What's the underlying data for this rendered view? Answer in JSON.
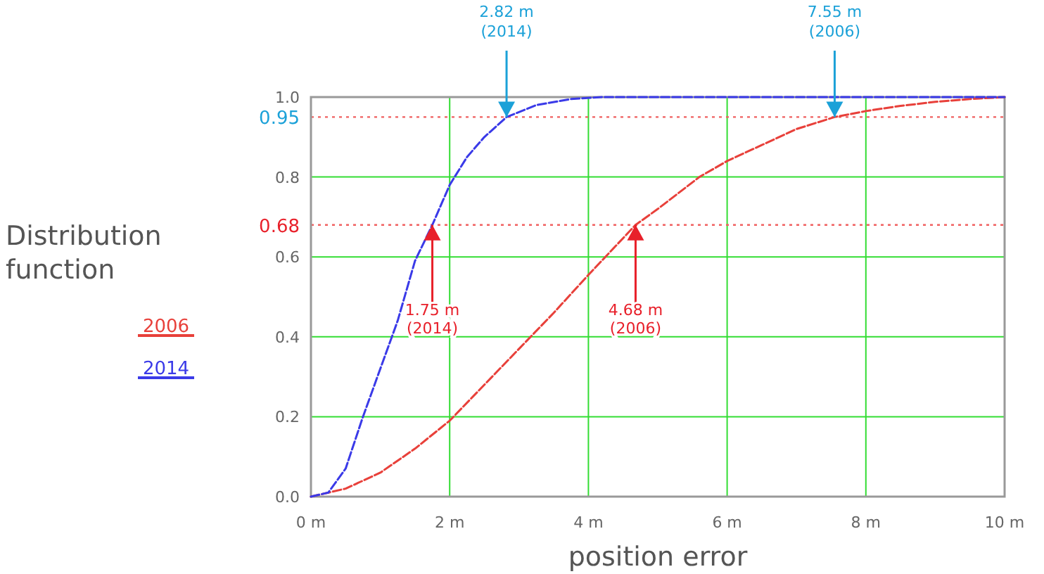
{
  "chart_data": {
    "type": "line",
    "xlabel": "position error",
    "ylabel": "Distribution function",
    "xlim": [
      0,
      10
    ],
    "ylim": [
      0,
      1
    ],
    "xticks": [
      {
        "value": 0,
        "label": "0 m"
      },
      {
        "value": 2,
        "label": "2 m"
      },
      {
        "value": 4,
        "label": "4 m"
      },
      {
        "value": 6,
        "label": "6 m"
      },
      {
        "value": 8,
        "label": "8 m"
      },
      {
        "value": 10,
        "label": "10 m"
      }
    ],
    "yticks": [
      {
        "value": 0,
        "label": "0.0"
      },
      0.2,
      0.4,
      0.6,
      0.8,
      {
        "value": 1,
        "label": "1.0"
      }
    ],
    "grid": true,
    "legend": "left",
    "line_style": "dashed",
    "marker": "none",
    "series": [
      {
        "name": "2006",
        "color": "#e8403a",
        "x": [
          0,
          0.5,
          1,
          1.5,
          2,
          2.5,
          3,
          3.5,
          4,
          4.68,
          5,
          5.6,
          6,
          6.5,
          7,
          7.55,
          8,
          8.5,
          9,
          9.5,
          10
        ],
        "values": [
          0,
          0.02,
          0.06,
          0.12,
          0.19,
          0.28,
          0.37,
          0.46,
          0.555,
          0.68,
          0.72,
          0.8,
          0.84,
          0.88,
          0.92,
          0.95,
          0.965,
          0.978,
          0.988,
          0.995,
          1
        ]
      },
      {
        "name": "2014",
        "color": "#3a3ae8",
        "x": [
          0,
          0.25,
          0.5,
          0.75,
          1,
          1.25,
          1.5,
          1.75,
          2,
          2.25,
          2.5,
          2.82,
          3.25,
          3.75,
          4.2,
          10
        ],
        "values": [
          0,
          0.01,
          0.07,
          0.2,
          0.32,
          0.44,
          0.59,
          0.68,
          0.78,
          0.85,
          0.9,
          0.95,
          0.98,
          0.995,
          1,
          1
        ]
      }
    ],
    "ref_lines": [
      {
        "axis": "y",
        "value": 0.95,
        "label": "0.95",
        "color": "#f06060",
        "line_style": "dotted"
      },
      {
        "axis": "y",
        "value": 0.68,
        "label": "0.68",
        "color": "#f06060",
        "line_style": "dotted"
      }
    ],
    "annotations": [
      {
        "text": "2.82 m\n(2014)",
        "x": 2.82,
        "y": 0.95
      },
      {
        "text": "7.55 m\n(2006)",
        "x": 7.55,
        "y": 0.95
      },
      {
        "text": "1.75 m\n(2014)",
        "x": 1.75,
        "y": 0.68
      },
      {
        "text": "4.68 m\n(2006)",
        "x": 4.68,
        "y": 0.68
      }
    ]
  }
}
